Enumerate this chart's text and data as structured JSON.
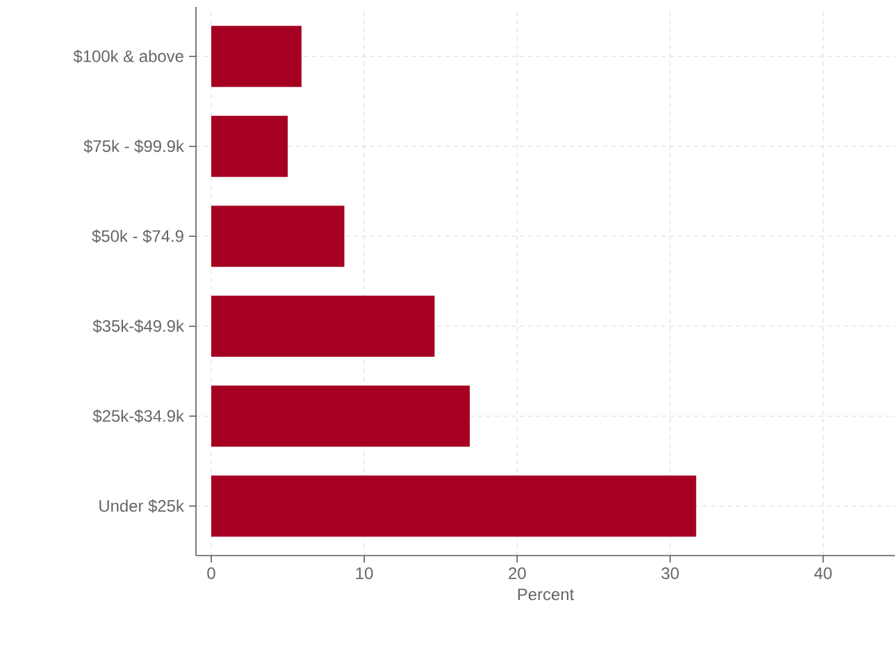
{
  "chart_data": {
    "type": "bar",
    "orientation": "horizontal",
    "categories": [
      "$100k & above",
      "$75k - $99.9k",
      "$50k - $74.9",
      "$35k-$49.9k",
      "$25k-$34.9k",
      "Under $25k"
    ],
    "values": [
      5.9,
      5.0,
      8.7,
      14.6,
      16.9,
      31.7
    ],
    "color": "#a50021",
    "xlabel": "Percent",
    "xlim": [
      -1,
      44.7
    ],
    "xticks": [
      0,
      10,
      20,
      30,
      40
    ],
    "grid": true
  }
}
